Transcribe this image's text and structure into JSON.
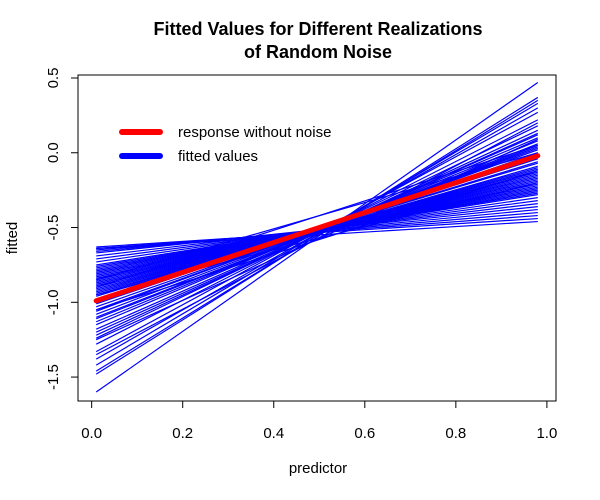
{
  "chart_data": {
    "type": "line",
    "title_line1": "Fitted Values for Different Realizations",
    "title_line2": "of Random Noise",
    "xlabel": "predictor",
    "ylabel": "fitted",
    "xlim": [
      -0.03,
      1.02
    ],
    "ylim": [
      -1.66,
      0.52
    ],
    "x_ticks": [
      "0.0",
      "0.2",
      "0.4",
      "0.6",
      "0.8",
      "1.0"
    ],
    "y_ticks": [
      "-1.5",
      "-1.0",
      "-0.5",
      "0.0",
      "0.5"
    ],
    "x_range": [
      0.01,
      0.98
    ],
    "grid": false,
    "legend_position": "top-left",
    "legend": [
      {
        "label": "response without noise",
        "color": "#ff0000"
      },
      {
        "label": "fitted values",
        "color": "#0000ff"
      }
    ],
    "true_line": {
      "name": "response without noise",
      "color": "#ff0000",
      "x": [
        0.01,
        0.98
      ],
      "y": [
        -0.99,
        -0.02
      ]
    },
    "fitted_lines": {
      "name": "fitted values",
      "color": "#0000ff",
      "segments": [
        [
          -1.6,
          0.47
        ],
        [
          -1.48,
          0.37
        ],
        [
          -1.46,
          0.35
        ],
        [
          -1.42,
          0.33
        ],
        [
          -1.38,
          0.3
        ],
        [
          -1.33,
          0.27
        ],
        [
          -1.28,
          0.22
        ],
        [
          -1.24,
          0.18
        ],
        [
          -1.22,
          0.15
        ],
        [
          -1.2,
          0.13
        ],
        [
          -1.18,
          0.12
        ],
        [
          -1.15,
          0.1
        ],
        [
          -1.13,
          0.08
        ],
        [
          -1.11,
          0.06
        ],
        [
          -1.1,
          0.05
        ],
        [
          -1.08,
          0.04
        ],
        [
          -1.06,
          0.03
        ],
        [
          -1.05,
          0.02
        ],
        [
          -1.03,
          0.0
        ],
        [
          -1.01,
          -0.01
        ],
        [
          -1.0,
          -0.02
        ],
        [
          -0.99,
          -0.03
        ],
        [
          -0.98,
          -0.04
        ],
        [
          -0.96,
          -0.06
        ],
        [
          -0.95,
          -0.07
        ],
        [
          -0.94,
          -0.09
        ],
        [
          -0.93,
          -0.1
        ],
        [
          -0.92,
          -0.11
        ],
        [
          -0.91,
          -0.12
        ],
        [
          -0.9,
          -0.13
        ],
        [
          -0.89,
          -0.14
        ],
        [
          -0.88,
          -0.15
        ],
        [
          -0.87,
          -0.16
        ],
        [
          -0.86,
          -0.17
        ],
        [
          -0.85,
          -0.18
        ],
        [
          -0.84,
          -0.19
        ],
        [
          -0.83,
          -0.2
        ],
        [
          -0.82,
          -0.21
        ],
        [
          -0.81,
          -0.22
        ],
        [
          -0.8,
          -0.23
        ],
        [
          -0.79,
          -0.24
        ],
        [
          -0.78,
          -0.25
        ],
        [
          -0.77,
          -0.26
        ],
        [
          -0.76,
          -0.27
        ],
        [
          -0.75,
          -0.28
        ],
        [
          -0.73,
          -0.3
        ],
        [
          -0.71,
          -0.32
        ],
        [
          -0.69,
          -0.34
        ],
        [
          -0.67,
          -0.36
        ],
        [
          -0.66,
          -0.38
        ],
        [
          -0.65,
          -0.4
        ],
        [
          -0.64,
          -0.42
        ],
        [
          -0.63,
          -0.44
        ],
        [
          -0.64,
          -0.46
        ],
        [
          -0.9,
          0.05
        ],
        [
          -0.85,
          0.0
        ],
        [
          -1.25,
          0.09
        ],
        [
          -1.35,
          0.2
        ],
        [
          -1.05,
          -0.12
        ],
        [
          -0.95,
          -0.2
        ]
      ]
    }
  }
}
